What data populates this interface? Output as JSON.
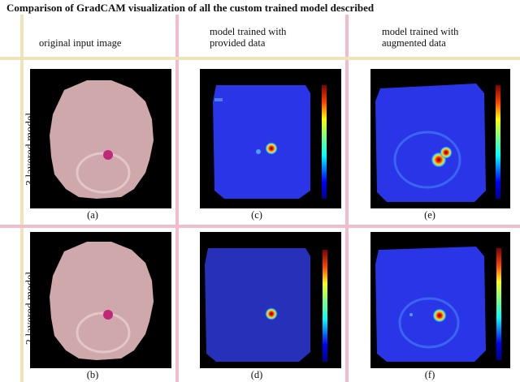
{
  "title": "Comparison of GradCAM visualization of all the custom trained model described",
  "columns": [
    {
      "header": "original  input image"
    },
    {
      "header_line1": "model trained with",
      "header_line2": "provided data"
    },
    {
      "header_line1": "model trained with",
      "header_line2": "augmented data"
    }
  ],
  "rows": [
    {
      "label": "3 layered model",
      "captions": [
        "(a)",
        "(c)",
        "(e)"
      ]
    },
    {
      "label": "2 layered model",
      "captions": [
        "(b)",
        "(d)",
        "(f)"
      ]
    }
  ],
  "colors": {
    "divider_pink": "#f2bccb",
    "divider_cream": "#efe3ba",
    "cell_fill": "#cfa8ab",
    "parasite": "#c0287a",
    "heatmap_base": "#2a35e8"
  }
}
